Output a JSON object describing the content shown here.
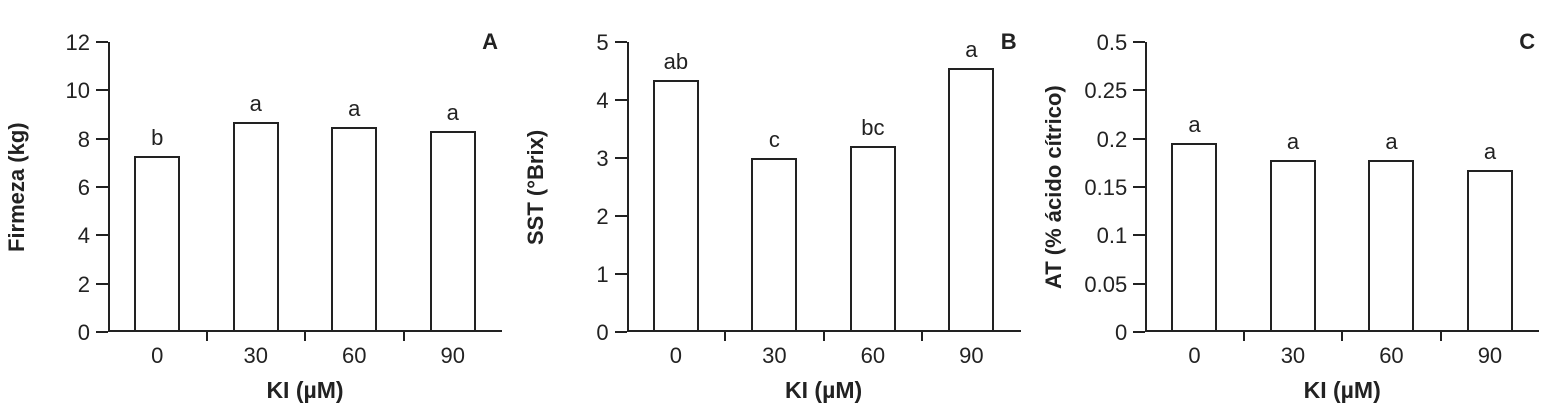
{
  "colors": {
    "ink": "#222222",
    "background": "#ffffff",
    "bar_fill": "#ffffff"
  },
  "chart_data": [
    {
      "type": "bar",
      "panel_label": "A",
      "ylabel": "Firmeza (kg)",
      "xlabel": "KI (µM)",
      "categories": [
        "0",
        "30",
        "60",
        "90"
      ],
      "values": [
        7.3,
        8.7,
        8.5,
        8.3
      ],
      "bar_labels": [
        "b",
        "a",
        "a",
        "a"
      ],
      "ytick_labels": [
        "0",
        "2",
        "4",
        "6",
        "8",
        "10",
        "12"
      ],
      "ylim": [
        0,
        12
      ],
      "grid": false,
      "legend": "none"
    },
    {
      "type": "bar",
      "panel_label": "B",
      "ylabel": "SST (°Brix)",
      "xlabel": "KI (µM)",
      "categories": [
        "0",
        "30",
        "60",
        "90"
      ],
      "values": [
        4.35,
        3.0,
        3.2,
        4.55
      ],
      "bar_labels": [
        "ab",
        "c",
        "bc",
        "a"
      ],
      "ytick_labels": [
        "0",
        "1",
        "2",
        "3",
        "4",
        "5"
      ],
      "ylim": [
        0,
        5
      ],
      "grid": false,
      "legend": "none"
    },
    {
      "type": "bar",
      "panel_label": "C",
      "ylabel": "AT (% ácido cítrico)",
      "xlabel": "KI (µM)",
      "categories": [
        "0",
        "30",
        "60",
        "90"
      ],
      "values": [
        0.195,
        0.178,
        0.178,
        0.168
      ],
      "bar_labels": [
        "a",
        "a",
        "a",
        "a"
      ],
      "ytick_labels": [
        "0",
        "0.05",
        "0.1",
        "0.15",
        "0.2",
        "0.25",
        "0.5"
      ],
      "ylim": [
        0,
        0.3
      ],
      "grid": false,
      "legend": "none"
    }
  ]
}
